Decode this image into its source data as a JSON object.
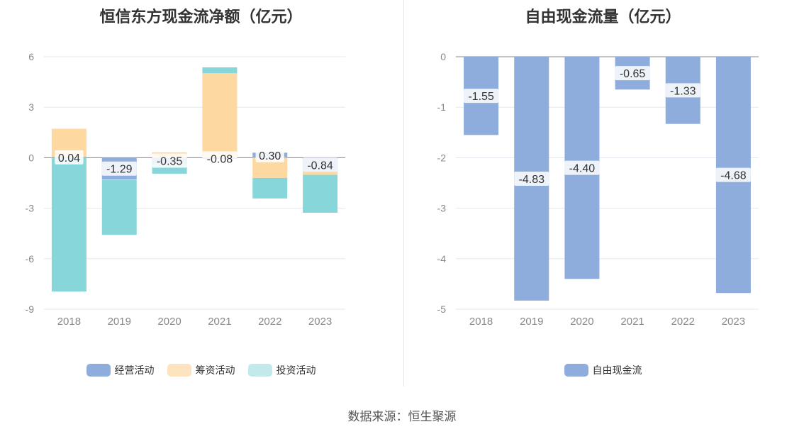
{
  "colors": {
    "operating": "#8eacdc",
    "financing": "#fdd8a0",
    "investing": "#87d6d9",
    "investing_legend": "#c2e9ec",
    "financing_legend": "#fde4bf",
    "fcf": "#8eacdc",
    "grid": "#e3e7ee",
    "axis": "#888888",
    "tick_text": "#888888"
  },
  "left": {
    "title": "恒信东方现金流净额（亿元）",
    "legend": [
      "经营活动",
      "筹资活动",
      "投资活动"
    ]
  },
  "right": {
    "title": "自由现金流量（亿元）",
    "legend": [
      "自由现金流"
    ]
  },
  "source": "数据来源：恒生聚源",
  "chart_data": [
    {
      "type": "bar",
      "stacked": true,
      "title": "恒信东方现金流净额（亿元）",
      "categories": [
        "2018",
        "2019",
        "2020",
        "2021",
        "2022",
        "2023"
      ],
      "ylim": [
        -9,
        6
      ],
      "yticks": [
        6,
        3,
        0,
        -3,
        -6,
        -9
      ],
      "ytick_labels": [
        "6",
        "3",
        "0",
        "-3",
        "-6",
        "-9"
      ],
      "grid": true,
      "legend_position": "bottom",
      "series": [
        {
          "name": "经营活动",
          "values": [
            0.04,
            -1.29,
            -0.35,
            -0.08,
            0.3,
            -0.84
          ],
          "labels": [
            "0.04",
            "-1.29",
            "-0.35",
            "-0.08",
            "0.30",
            "-0.84"
          ]
        },
        {
          "name": "筹资活动",
          "values": [
            1.68,
            -0.04,
            0.32,
            5.02,
            -1.2,
            -0.18
          ]
        },
        {
          "name": "投资活动",
          "values": [
            -7.95,
            -3.25,
            -0.6,
            0.35,
            -1.22,
            -2.25
          ]
        }
      ]
    },
    {
      "type": "bar",
      "title": "自由现金流量（亿元）",
      "categories": [
        "2018",
        "2019",
        "2020",
        "2021",
        "2022",
        "2023"
      ],
      "ylim": [
        -5,
        0
      ],
      "yticks": [
        0,
        -1,
        -2,
        -3,
        -4,
        -5
      ],
      "ytick_labels": [
        "0",
        "-1",
        "-2",
        "-3",
        "-4",
        "-5"
      ],
      "grid": true,
      "legend_position": "bottom",
      "series": [
        {
          "name": "自由现金流",
          "values": [
            -1.55,
            -4.83,
            -4.4,
            -0.65,
            -1.33,
            -4.68
          ],
          "labels": [
            "-1.55",
            "-4.83",
            "-4.40",
            "-0.65",
            "-1.33",
            "-4.68"
          ]
        }
      ]
    }
  ]
}
